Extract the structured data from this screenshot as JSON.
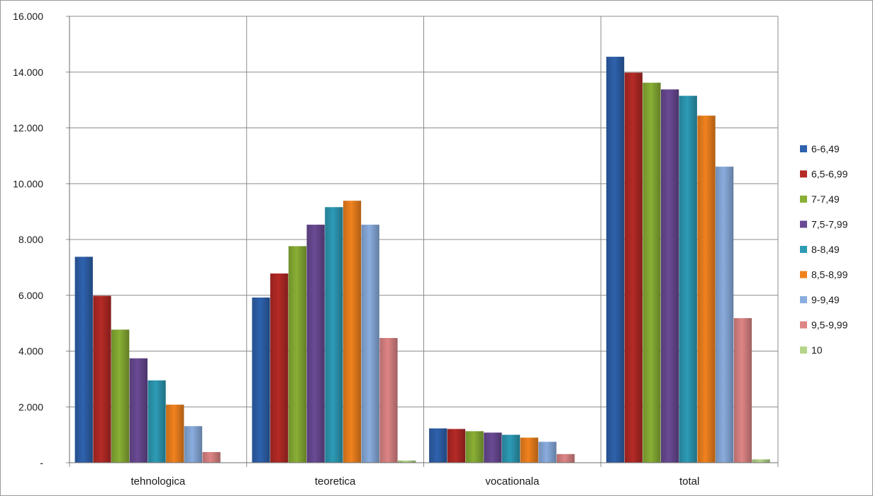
{
  "chart_data": {
    "type": "bar",
    "title": "",
    "xlabel": "",
    "ylabel": "",
    "categories": [
      "tehnologica",
      "teoretica",
      "vocationala",
      "total"
    ],
    "ylim": [
      0,
      16000
    ],
    "yticks": [
      0,
      2000,
      4000,
      6000,
      8000,
      10000,
      12000,
      14000,
      16000
    ],
    "ytick_labels": [
      "-",
      "2.000",
      "4.000",
      "6.000",
      "8.000",
      "10.000",
      "12.000",
      "14.000",
      "16.000"
    ],
    "grid": true,
    "legend_position": "right",
    "series": [
      {
        "name": "6-6,49",
        "color": "#2e62ad",
        "values": [
          7380,
          5920,
          1230,
          14550
        ]
      },
      {
        "name": "6,5-6,99",
        "color": "#b52a26",
        "values": [
          5980,
          6780,
          1210,
          13980
        ]
      },
      {
        "name": "7-7,49",
        "color": "#89af35",
        "values": [
          4770,
          7760,
          1130,
          13620
        ]
      },
      {
        "name": "7,5-7,99",
        "color": "#6a4a94",
        "values": [
          3740,
          8530,
          1080,
          13380
        ]
      },
      {
        "name": "8-8,49",
        "color": "#2d9bb6",
        "values": [
          2950,
          9160,
          1000,
          13150
        ]
      },
      {
        "name": "8,5-8,99",
        "color": "#f1821e",
        "values": [
          2080,
          9390,
          900,
          12440
        ]
      },
      {
        "name": "9-9,49",
        "color": "#8aaddf",
        "values": [
          1310,
          8530,
          750,
          10610
        ]
      },
      {
        "name": "9,5-9,99",
        "color": "#de8585",
        "values": [
          380,
          4470,
          310,
          5180
        ]
      },
      {
        "name": "10",
        "color": "#b5d68a",
        "values": [
          0,
          80,
          0,
          120
        ]
      }
    ]
  }
}
